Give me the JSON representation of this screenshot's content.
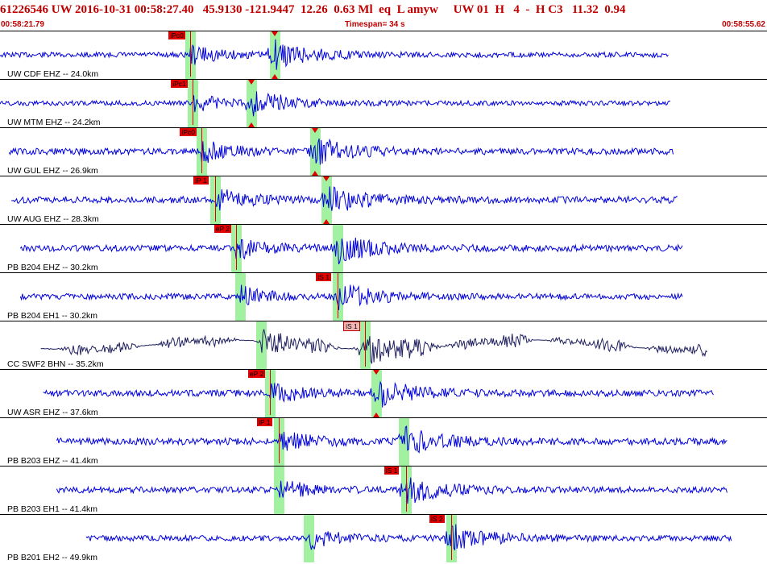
{
  "header": {
    "event_line": "61226546 UW 2016-10-31 00:58:27.40   45.9130 -121.9447  12.26  0.63 Ml  eq  L amyw     UW 01  H   4  -  H C3   11.32  0.94"
  },
  "subheader": {
    "start_time": "00:58:21.79",
    "timespan": "Timespan=  34 s",
    "end_time": "00:58:55.62"
  },
  "colors": {
    "trace": "#0000dd",
    "trace_dark": "#202060",
    "pick": "#e00000",
    "window": "#90ee90"
  },
  "panels": [
    {
      "label": "UW CDF EHZ -- 24.0km",
      "pick_p": "iPc0",
      "pick_s": "",
      "amp": 0.25,
      "p_t": 8.4,
      "s_t": 12.1,
      "start_t": 0.0,
      "end_t": 29.5,
      "pol": "up",
      "s_marker": true,
      "color": "trace"
    },
    {
      "label": "UW MTM EHZ -- 24.2km",
      "pick_p": "iPc1",
      "pick_s": "",
      "amp": 0.2,
      "p_t": 8.5,
      "s_t": 11.1,
      "start_t": 0.0,
      "end_t": 29.6,
      "pol": "up",
      "s_marker": true,
      "color": "trace"
    },
    {
      "label": "UW GUL EHZ -- 26.9km",
      "pick_p": "iPc0",
      "pick_s": "",
      "amp": 0.45,
      "p_t": 8.9,
      "s_t": 13.9,
      "start_t": 0.4,
      "end_t": 29.7,
      "pol": "up",
      "s_marker": true,
      "color": "trace"
    },
    {
      "label": "UW AUG EHZ -- 28.3km",
      "pick_p": "iP 1",
      "pick_s": "",
      "amp": 0.5,
      "p_t": 9.5,
      "s_t": 14.4,
      "start_t": 0.5,
      "end_t": 29.9,
      "pol": "up",
      "s_marker": true,
      "color": "trace"
    },
    {
      "label": "PB B204 EHZ -- 30.2km",
      "pick_p": "eP 2",
      "pick_s": "",
      "amp": 0.45,
      "p_t": 10.4,
      "s_t": 14.9,
      "start_t": 0.9,
      "end_t": 30.1,
      "pol": "up",
      "s_marker": false,
      "color": "trace"
    },
    {
      "label": "PB B204 EH1 -- 30.2km",
      "pick_p": "",
      "pick_s": "iS 1",
      "amp": 0.35,
      "p_t": 10.6,
      "s_t": 14.9,
      "start_t": 0.9,
      "end_t": 30.1,
      "pol": "up",
      "s_marker": false,
      "color": "trace"
    },
    {
      "label": "CC SWF2 BHN -- 35.2km",
      "pick_p": "",
      "pick_s": "iS 1",
      "amp": 0.55,
      "p_t": 11.5,
      "s_t": 16.1,
      "start_t": 1.8,
      "end_t": 31.2,
      "pol": "up",
      "s_marker": false,
      "color": "trace_dark"
    },
    {
      "label": "UW ASR EHZ -- 37.6km",
      "pick_p": "eP 2",
      "pick_s": "",
      "amp": 0.45,
      "p_t": 11.9,
      "s_t": 16.6,
      "start_t": 1.9,
      "end_t": 31.5,
      "pol": "up",
      "s_marker": true,
      "color": "trace"
    },
    {
      "label": "PB B203 EHZ -- 41.4km",
      "pick_p": "iP 1",
      "pick_s": "",
      "amp": 0.5,
      "p_t": 12.3,
      "s_t": 17.8,
      "start_t": 2.5,
      "end_t": 32.1,
      "pol": "up",
      "s_marker": false,
      "color": "trace"
    },
    {
      "label": "PB B203 EH1 -- 41.4km",
      "pick_p": "",
      "pick_s": "iS 1",
      "amp": 0.4,
      "p_t": 12.3,
      "s_t": 17.9,
      "start_t": 2.5,
      "end_t": 32.1,
      "pol": "up",
      "s_marker": false,
      "color": "trace"
    },
    {
      "label": "PB B201 EH2 -- 49.9km",
      "pick_p": "",
      "pick_s": "iS 2",
      "amp": 0.35,
      "p_t": 13.6,
      "s_t": 19.9,
      "start_t": 3.8,
      "end_t": 32.3,
      "pol": "up",
      "s_marker": false,
      "color": "trace"
    }
  ],
  "time_axis": {
    "start_s": 0,
    "span_s": 33.83
  }
}
